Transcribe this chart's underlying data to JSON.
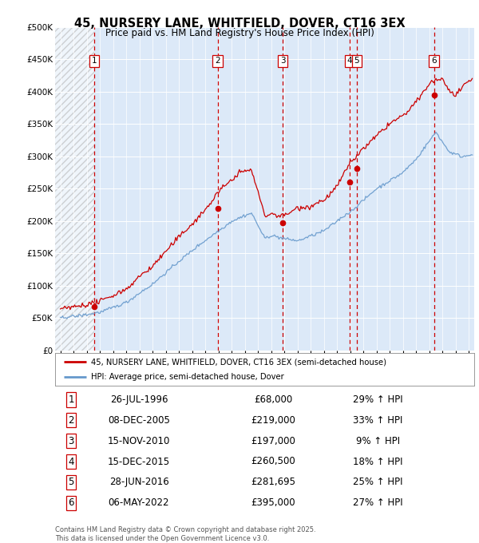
{
  "title": "45, NURSERY LANE, WHITFIELD, DOVER, CT16 3EX",
  "subtitle": "Price paid vs. HM Land Registry's House Price Index (HPI)",
  "property_label": "45, NURSERY LANE, WHITFIELD, DOVER, CT16 3EX (semi-detached house)",
  "hpi_label": "HPI: Average price, semi-detached house, Dover",
  "sale_points": [
    {
      "num": 1,
      "year": 1996.57,
      "price": 68000
    },
    {
      "num": 2,
      "year": 2005.93,
      "price": 219000
    },
    {
      "num": 3,
      "year": 2010.87,
      "price": 197000
    },
    {
      "num": 4,
      "year": 2015.95,
      "price": 260500
    },
    {
      "num": 5,
      "year": 2016.49,
      "price": 281695
    },
    {
      "num": 6,
      "year": 2022.35,
      "price": 395000
    }
  ],
  "sale_table": [
    {
      "num": 1,
      "date": "26-JUL-1996",
      "price": "£68,000",
      "pct": "29% ↑ HPI"
    },
    {
      "num": 2,
      "date": "08-DEC-2005",
      "price": "£219,000",
      "pct": "33% ↑ HPI"
    },
    {
      "num": 3,
      "date": "15-NOV-2010",
      "price": "£197,000",
      "pct": "9% ↑ HPI"
    },
    {
      "num": 4,
      "date": "15-DEC-2015",
      "price": "£260,500",
      "pct": "18% ↑ HPI"
    },
    {
      "num": 5,
      "date": "28-JUN-2016",
      "price": "£281,695",
      "pct": "25% ↑ HPI"
    },
    {
      "num": 6,
      "date": "06-MAY-2022",
      "price": "£395,000",
      "pct": "27% ↑ HPI"
    }
  ],
  "ylim": [
    0,
    500000
  ],
  "yticks": [
    0,
    50000,
    100000,
    150000,
    200000,
    250000,
    300000,
    350000,
    400000,
    450000,
    500000
  ],
  "xlim_start": 1993.6,
  "xlim_end": 2025.4,
  "background_color": "#dce9f8",
  "hatch_color": "#b0b0b0",
  "grid_color": "#ffffff",
  "property_line_color": "#cc0000",
  "hpi_line_color": "#6699cc",
  "sale_dot_color": "#cc0000",
  "dashed_line_color": "#cc0000",
  "footer": "Contains HM Land Registry data © Crown copyright and database right 2025.\nThis data is licensed under the Open Government Licence v3.0."
}
